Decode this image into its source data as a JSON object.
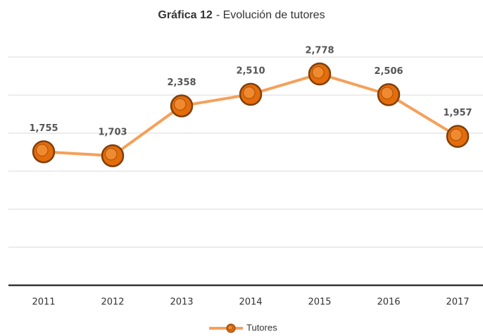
{
  "chart_data": {
    "type": "line",
    "title": [
      "Gráfica 12",
      "- Evolución de tutores"
    ],
    "categories": [
      "2011",
      "2012",
      "2013",
      "2014",
      "2015",
      "2016",
      "2017"
    ],
    "series": [
      {
        "name": "Tutores",
        "color": "#f5a05a",
        "marker_color": "#e46c0a",
        "values": [
          1755,
          1703,
          2358,
          2510,
          2778,
          2506,
          1957
        ],
        "value_labels": [
          "1,755",
          "1,703",
          "2,358",
          "2,510",
          "2,778",
          "2,506",
          "1,957"
        ]
      }
    ],
    "ylim": [
      0,
      3000
    ],
    "yticks": [
      0,
      500,
      1000,
      1500,
      2000,
      2500,
      3000
    ],
    "grid": true,
    "legend": "bottom"
  }
}
